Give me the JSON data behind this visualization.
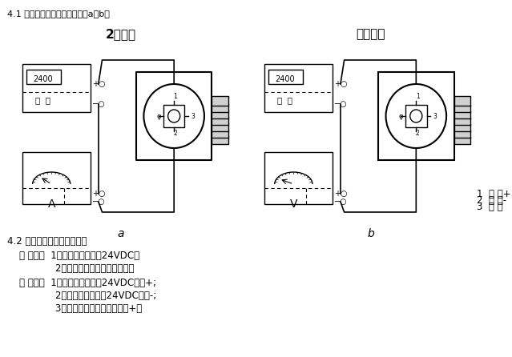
{
  "bg_color": "#f0f0f0",
  "title_line": "4.1 赫斯曼结构电气连接如下图a、b：",
  "left_title": "2线电流",
  "right_title": "电压输出",
  "label_a": "a",
  "label_b": "b",
  "source_label": "2400",
  "source_text": "电  源",
  "legend_1": "1  电 源+",
  "legend_2": "2  电 源-",
  "legend_3": "3  输 出",
  "section_title": "4.2 直接引线结构电气连接：",
  "line1": "口 电流：  1号端子（红线）：24VDC；",
  "line2": "            2号端子（蓝线）：电流输出。",
  "line3": "口 电压：  1号端子（红线）：24VDC电源+;",
  "line4": "            2号端子（蓝线）：24VDC电源-;",
  "line5": "            3号端子（黄线）：信号输出+。"
}
